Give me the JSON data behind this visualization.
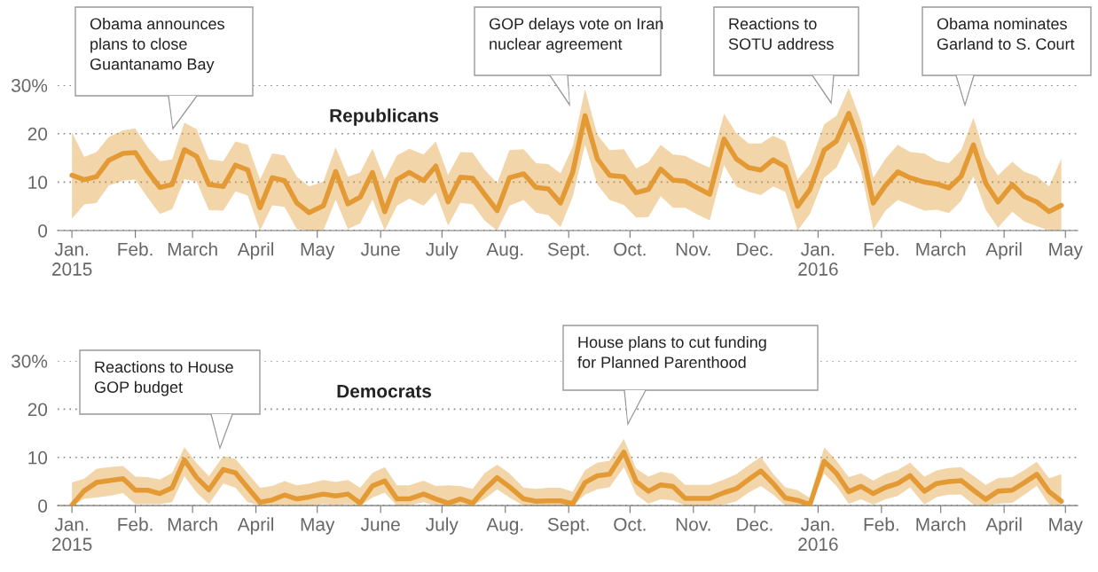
{
  "chart_data": [
    {
      "type": "line",
      "title": "Republicans",
      "x": [
        "2015-01-01",
        "2015-01-07",
        "2015-01-13",
        "2015-01-19",
        "2015-01-26",
        "2015-02-01",
        "2015-02-07",
        "2015-02-13",
        "2015-02-19",
        "2015-02-25",
        "2015-03-03",
        "2015-03-09",
        "2015-03-16",
        "2015-03-22",
        "2015-03-28",
        "2015-04-03",
        "2015-04-09",
        "2015-04-15",
        "2015-04-21",
        "2015-04-27",
        "2015-05-04",
        "2015-05-10",
        "2015-05-16",
        "2015-05-22",
        "2015-05-28",
        "2015-06-03",
        "2015-06-09",
        "2015-06-15",
        "2015-06-22",
        "2015-06-28",
        "2015-07-04",
        "2015-07-10",
        "2015-07-16",
        "2015-07-22",
        "2015-07-28",
        "2015-08-03",
        "2015-08-10",
        "2015-08-16",
        "2015-08-22",
        "2015-08-28",
        "2015-09-03",
        "2015-09-09",
        "2015-09-15",
        "2015-09-21",
        "2015-09-28",
        "2015-10-04",
        "2015-10-10",
        "2015-10-16",
        "2015-10-22",
        "2015-10-28",
        "2015-11-03",
        "2015-11-09",
        "2015-11-16",
        "2015-11-22",
        "2015-11-28",
        "2015-12-04",
        "2015-12-10",
        "2015-12-16",
        "2015-12-22",
        "2015-12-28",
        "2016-01-04",
        "2016-01-10",
        "2016-01-16",
        "2016-01-22",
        "2016-01-28",
        "2016-02-03",
        "2016-02-09",
        "2016-02-15",
        "2016-02-22",
        "2016-02-28",
        "2016-03-05",
        "2016-03-11",
        "2016-03-17",
        "2016-03-23",
        "2016-03-29",
        "2016-04-05",
        "2016-04-11",
        "2016-04-17",
        "2016-04-23",
        "2016-04-29"
      ],
      "series": [
        {
          "color": "#e39a35",
          "values": [
            11.4,
            10.5,
            11.1,
            14.5,
            15.9,
            16.1,
            12.2,
            8.9,
            9.5,
            16.7,
            15.3,
            9.5,
            9.1,
            13.5,
            12.5,
            4.7,
            10.9,
            10.3,
            5.7,
            3.7,
            5.1,
            12.2,
            5.5,
            6.9,
            12.0,
            3.9,
            10.5,
            12.0,
            10.3,
            13.3,
            5.9,
            11.0,
            10.8,
            7.4,
            4.1,
            10.9,
            11.7,
            8.9,
            8.6,
            5.7,
            12.1,
            23.7,
            14.8,
            11.4,
            11.1,
            7.8,
            8.5,
            12.7,
            10.4,
            10.2,
            8.8,
            7.5,
            18.9,
            14.8,
            13.0,
            12.5,
            14.6,
            13.2,
            5.0,
            8.5,
            16.6,
            18.5,
            24.2,
            17.4,
            5.7,
            9.3,
            12.1,
            10.9,
            10.0,
            9.6,
            8.8,
            11.2,
            17.7,
            9.8,
            5.9,
            9.5,
            7.0,
            5.9,
            3.9,
            5.2
          ],
          "lower": [
            2.4,
            5.4,
            5.7,
            9.3,
            10.3,
            10.5,
            6.8,
            3.4,
            4.4,
            10.6,
            10.1,
            4.2,
            4.1,
            8.1,
            7.2,
            0,
            5.2,
            4.9,
            0.3,
            0,
            0,
            6.4,
            0.3,
            1.5,
            6.4,
            0,
            5.1,
            6.6,
            5.1,
            7.8,
            1.0,
            5.7,
            5.4,
            2.0,
            0,
            5.1,
            6.3,
            3.7,
            3.2,
            0.7,
            7.0,
            17.7,
            9.5,
            6.3,
            5.3,
            2.7,
            2.8,
            7.1,
            4.7,
            4.7,
            3.3,
            2.1,
            13.5,
            9.1,
            8.0,
            7.3,
            9.1,
            8.0,
            0,
            3.4,
            10.9,
            13.0,
            18.4,
            12.3,
            0.2,
            4.1,
            6.3,
            5.3,
            4.1,
            4.3,
            3.6,
            6.1,
            11.2,
            4.3,
            0.6,
            3.9,
            1.8,
            0.9,
            0,
            0
          ],
          "upper": [
            20.3,
            15.2,
            16.2,
            19.3,
            20.7,
            21.1,
            17.2,
            14.3,
            14.7,
            22.3,
            20.9,
            14.7,
            14.3,
            18.4,
            17.7,
            10.5,
            15.9,
            15.5,
            11.1,
            9.1,
            10.1,
            17.2,
            11.1,
            12.0,
            16.9,
            10.5,
            15.5,
            16.9,
            15.7,
            18.4,
            11.5,
            16.2,
            16.1,
            12.5,
            9.8,
            16.6,
            16.8,
            13.9,
            13.7,
            11.8,
            17.3,
            29.2,
            19.8,
            16.6,
            16.8,
            12.8,
            14.1,
            17.7,
            15.7,
            15.4,
            14.1,
            13.0,
            24.1,
            20.1,
            18.0,
            18.0,
            19.6,
            18.4,
            10.5,
            13.7,
            21.9,
            23.7,
            29.4,
            22.6,
            10.9,
            14.8,
            17.7,
            16.2,
            15.9,
            14.4,
            13.9,
            16.6,
            23.3,
            15.2,
            11.4,
            14.2,
            12.1,
            11.2,
            9.1,
            14.8
          ]
        }
      ],
      "xlim": [
        "2014-12-25",
        "2016-05-07"
      ],
      "xticks": [
        {
          "value": "2015-01-01",
          "label": "Jan.\n2015"
        },
        {
          "value": "2015-02-01",
          "label": "Feb."
        },
        {
          "value": "2015-03-01",
          "label": "March"
        },
        {
          "value": "2015-04-01",
          "label": "April"
        },
        {
          "value": "2015-05-01",
          "label": "May"
        },
        {
          "value": "2015-06-01",
          "label": "June"
        },
        {
          "value": "2015-07-01",
          "label": "July"
        },
        {
          "value": "2015-08-01",
          "label": "Aug."
        },
        {
          "value": "2015-09-01",
          "label": "Sept."
        },
        {
          "value": "2015-10-01",
          "label": "Oct."
        },
        {
          "value": "2015-11-01",
          "label": "Nov."
        },
        {
          "value": "2015-12-01",
          "label": "Dec."
        },
        {
          "value": "2016-01-01",
          "label": "Jan.\n2016"
        },
        {
          "value": "2016-02-01",
          "label": "Feb."
        },
        {
          "value": "2016-03-01",
          "label": "March"
        },
        {
          "value": "2016-04-01",
          "label": "April"
        },
        {
          "value": "2016-05-01",
          "label": "May"
        }
      ],
      "ylim": [
        0,
        30
      ],
      "yticks": [
        0,
        10,
        20,
        {
          "value": 30,
          "label": "30%"
        }
      ],
      "grid": "y",
      "annotations": [
        "Obama announces\nplans to close\nGuantanamo Bay",
        "GOP delays vote on Iran\nnuclear agreement",
        "Reactions to\nSOTU address",
        "Obama nominates\nGarland to S. Court"
      ]
    },
    {
      "type": "line",
      "title": "Democrats",
      "x": [
        "2015-01-01",
        "2015-01-07",
        "2015-01-13",
        "2015-01-19",
        "2015-01-26",
        "2015-02-01",
        "2015-02-07",
        "2015-02-13",
        "2015-02-19",
        "2015-02-25",
        "2015-03-03",
        "2015-03-09",
        "2015-03-16",
        "2015-03-22",
        "2015-03-28",
        "2015-04-03",
        "2015-04-09",
        "2015-04-15",
        "2015-04-21",
        "2015-04-27",
        "2015-05-04",
        "2015-05-10",
        "2015-05-16",
        "2015-05-22",
        "2015-05-28",
        "2015-06-03",
        "2015-06-09",
        "2015-06-15",
        "2015-06-22",
        "2015-06-28",
        "2015-07-04",
        "2015-07-10",
        "2015-07-16",
        "2015-07-22",
        "2015-07-28",
        "2015-08-03",
        "2015-08-10",
        "2015-08-16",
        "2015-08-22",
        "2015-08-28",
        "2015-09-03",
        "2015-09-09",
        "2015-09-15",
        "2015-09-21",
        "2015-09-28",
        "2015-10-04",
        "2015-10-10",
        "2015-10-16",
        "2015-10-22",
        "2015-10-28",
        "2015-11-03",
        "2015-11-09",
        "2015-11-16",
        "2015-11-22",
        "2015-11-28",
        "2015-12-04",
        "2015-12-10",
        "2015-12-16",
        "2015-12-22",
        "2015-12-28",
        "2016-01-04",
        "2016-01-10",
        "2016-01-16",
        "2016-01-22",
        "2016-01-28",
        "2016-02-03",
        "2016-02-09",
        "2016-02-15",
        "2016-02-22",
        "2016-02-28",
        "2016-03-05",
        "2016-03-11",
        "2016-03-17",
        "2016-03-23",
        "2016-03-29",
        "2016-04-05",
        "2016-04-11",
        "2016-04-17",
        "2016-04-23",
        "2016-04-29"
      ],
      "series": [
        {
          "color": "#e39a35",
          "values": [
            0.1,
            3.1,
            4.8,
            5.2,
            5.6,
            3.2,
            3.2,
            2.5,
            3.7,
            9.5,
            5.8,
            3.3,
            7.5,
            6.8,
            3.7,
            0.7,
            1.2,
            2.2,
            1.4,
            1.8,
            2.4,
            2.0,
            2.4,
            0.5,
            4.1,
            5.1,
            1.4,
            1.4,
            2.4,
            1.4,
            0.5,
            1.4,
            0.5,
            3.4,
            5.8,
            3.9,
            1.4,
            0.9,
            1.0,
            1.0,
            0.4,
            4.8,
            6.2,
            6.5,
            11.1,
            5.0,
            3.0,
            4.3,
            4.0,
            1.5,
            1.5,
            1.5,
            2.7,
            3.5,
            5.4,
            7.2,
            4.6,
            1.6,
            1.1,
            0.2,
            9.2,
            6.7,
            2.9,
            4.0,
            2.5,
            3.8,
            4.6,
            6.2,
            3.0,
            4.6,
            5.0,
            5.2,
            3.2,
            1.3,
            3.0,
            3.2,
            4.8,
            6.5,
            2.9,
            0.9
          ],
          "lower": [
            0,
            1.4,
            1.7,
            2.0,
            2.6,
            0.3,
            0.3,
            0.3,
            0.7,
            6.1,
            2.7,
            0.3,
            4.6,
            3.7,
            0.7,
            0,
            0,
            0.1,
            0,
            0,
            0.3,
            0.1,
            0.3,
            0,
            1.7,
            2.7,
            0,
            0.1,
            0.7,
            0,
            0,
            0.1,
            0,
            1.4,
            3.4,
            1.7,
            0,
            0,
            0,
            0,
            0,
            2.3,
            3.4,
            3.8,
            8.0,
            2.3,
            0.4,
            1.3,
            1.1,
            0,
            0,
            0,
            0.2,
            0.9,
            2.7,
            4.1,
            2.3,
            0,
            0,
            0,
            6.6,
            4.1,
            0.4,
            1.3,
            0.2,
            1.3,
            2.0,
            3.8,
            0.2,
            1.8,
            2.3,
            2.3,
            0.2,
            0,
            0.4,
            0.6,
            2.3,
            4.1,
            0.2,
            0
          ],
          "upper": [
            4.8,
            5.6,
            7.6,
            8.0,
            8.2,
            6.0,
            5.9,
            5.4,
            6.8,
            12.1,
            8.8,
            6.1,
            10.3,
            9.7,
            6.7,
            3.7,
            4.1,
            5.1,
            4.2,
            4.6,
            5.3,
            4.9,
            5.3,
            3.7,
            6.8,
            8.0,
            4.2,
            4.2,
            5.2,
            4.1,
            4.2,
            4.1,
            3.5,
            6.8,
            8.5,
            6.7,
            3.7,
            3.5,
            3.7,
            3.7,
            2.9,
            7.4,
            8.9,
            9.3,
            13.8,
            7.7,
            6.0,
            7.0,
            6.6,
            4.3,
            4.3,
            4.3,
            5.4,
            6.5,
            8.4,
            10.1,
            6.6,
            3.8,
            3.2,
            1.6,
            12.1,
            9.3,
            5.9,
            6.7,
            5.2,
            6.6,
            7.4,
            8.9,
            6.0,
            7.3,
            7.8,
            8.0,
            6.2,
            4.3,
            5.7,
            5.9,
            7.4,
            9.1,
            5.7,
            6.5
          ]
        }
      ],
      "xlim": [
        "2014-12-25",
        "2016-05-07"
      ],
      "xticks": [
        {
          "value": "2015-01-01",
          "label": "Jan.\n2015"
        },
        {
          "value": "2015-02-01",
          "label": "Feb."
        },
        {
          "value": "2015-03-01",
          "label": "March"
        },
        {
          "value": "2015-04-01",
          "label": "April"
        },
        {
          "value": "2015-05-01",
          "label": "May"
        },
        {
          "value": "2015-06-01",
          "label": "June"
        },
        {
          "value": "2015-07-01",
          "label": "July"
        },
        {
          "value": "2015-08-01",
          "label": "Aug."
        },
        {
          "value": "2015-09-01",
          "label": "Sept."
        },
        {
          "value": "2015-10-01",
          "label": "Oct."
        },
        {
          "value": "2015-11-01",
          "label": "Nov."
        },
        {
          "value": "2015-12-01",
          "label": "Dec."
        },
        {
          "value": "2016-01-01",
          "label": "Jan.\n2016"
        },
        {
          "value": "2016-02-01",
          "label": "Feb."
        },
        {
          "value": "2016-03-01",
          "label": "March"
        },
        {
          "value": "2016-04-01",
          "label": "April"
        },
        {
          "value": "2016-05-01",
          "label": "May"
        }
      ],
      "ylim": [
        0,
        30
      ],
      "yticks": [
        0,
        10,
        20,
        {
          "value": 30,
          "label": "30%"
        }
      ],
      "grid": "y",
      "annotations": [
        "Reactions to House\nGOP budget",
        "House plans to cut funding\nfor Planned Parenthood"
      ]
    }
  ]
}
